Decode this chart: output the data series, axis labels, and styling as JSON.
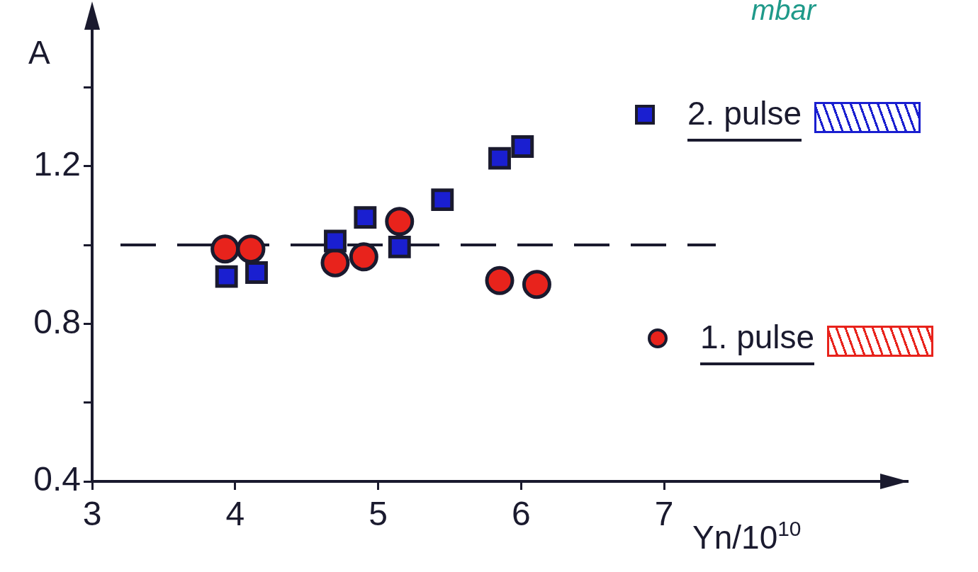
{
  "chart_data": {
    "type": "scatter",
    "xlabel": "Yn/10$^{10}$",
    "ylabel": "A",
    "annotations": [
      "mbar"
    ],
    "xlim": [
      3,
      8.7
    ],
    "xticks": [
      3,
      4,
      5,
      6,
      7
    ],
    "ylim": [
      0.4,
      1.55
    ],
    "yticks": [
      0.4,
      {
        "value": 0.6,
        "label": null
      },
      0.8,
      {
        "value": 1.0,
        "label": null
      },
      1.2,
      {
        "value": 1.4,
        "label": null
      }
    ],
    "grid": false,
    "legend": "right",
    "ref_lines": [
      {
        "axis": "y",
        "value": 1.0,
        "label": null,
        "color": "#1a1a2e",
        "line_style": "dashed"
      }
    ],
    "series": [
      {
        "name": "2. pulse",
        "color": "#1a1fd0",
        "marker": "square",
        "x": [
          3.94,
          4.15,
          4.7,
          4.91,
          5.15,
          5.45,
          5.85,
          6.01
        ],
        "values": [
          0.92,
          0.93,
          1.01,
          1.07,
          0.995,
          1.115,
          1.22,
          1.25
        ]
      },
      {
        "name": "1. pulse",
        "color": "#e8231c",
        "marker": "circle",
        "x": [
          3.93,
          4.11,
          4.7,
          4.9,
          5.15,
          5.85,
          6.11
        ],
        "values": [
          0.99,
          0.99,
          0.955,
          0.97,
          1.06,
          0.91,
          0.9
        ]
      }
    ]
  }
}
